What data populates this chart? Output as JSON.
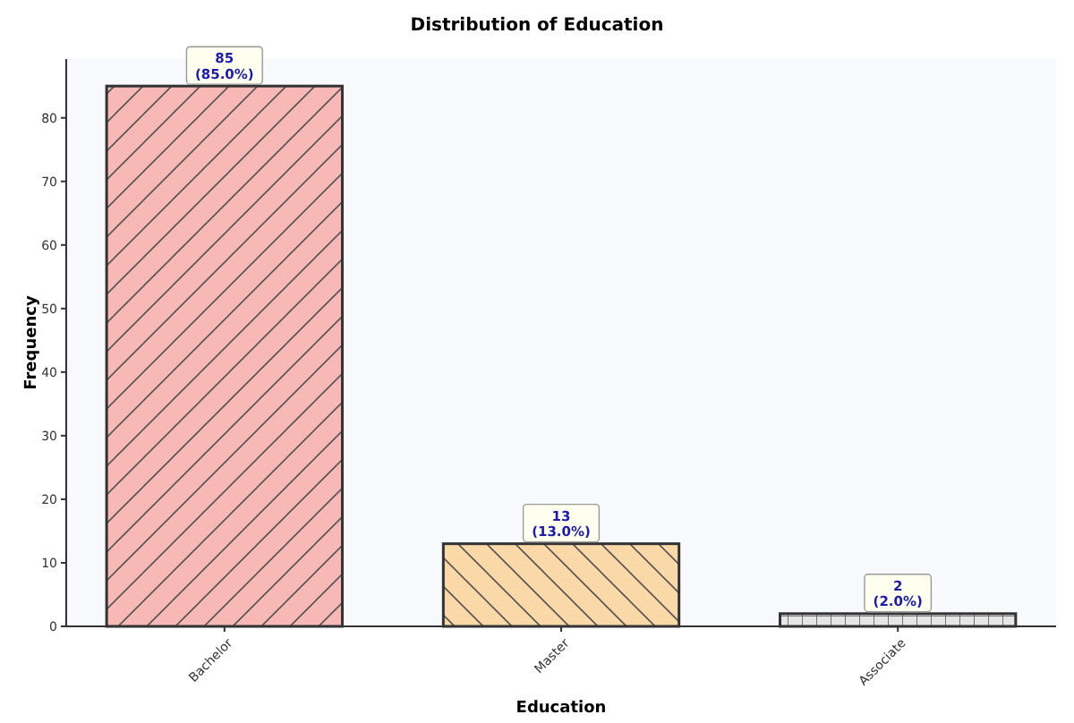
{
  "chart_data": {
    "type": "bar",
    "title": "Distribution of Education",
    "xlabel": "Education",
    "ylabel": "Frequency",
    "categories": [
      "Bachelor",
      "Master",
      "Associate"
    ],
    "values": [
      85,
      13,
      2
    ],
    "colors": [
      "#f8b8b6",
      "#fbd8a8",
      "#e6e6e6"
    ],
    "value_labels": [
      "85\n(85.0%)",
      "13\n(13.0%)",
      "2\n(2.0%)"
    ],
    "ylim": [
      0,
      89.25
    ],
    "yticks": [
      0,
      10,
      20,
      30,
      40,
      50,
      60,
      70,
      80
    ],
    "grid": false
  }
}
